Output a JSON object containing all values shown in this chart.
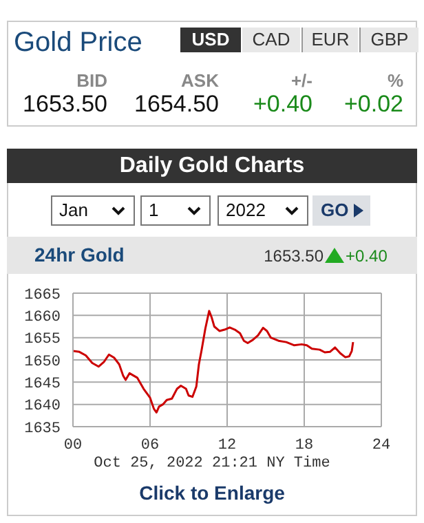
{
  "chart_data": [
    {
      "type": "other",
      "title": "Gold Price",
      "annotations": [
        "USD",
        "CAD",
        "EUR",
        "GBP",
        "BID",
        "ASK",
        "+/-",
        "%",
        "1653.50",
        "1654.50",
        "+0.40",
        "+0.02"
      ]
    },
    {
      "type": "line",
      "title": "Daily Gold Charts",
      "subtitle": "24hr Gold",
      "xlabel": "Oct 25, 2022 21:21 NY Time",
      "annotations": [
        "Jan",
        "1",
        "2022",
        "GO",
        "1653.50",
        "+0.40",
        "Click to Enlarge"
      ],
      "x": [
        0,
        0.5,
        1.0,
        1.5,
        2.0,
        2.4,
        2.8,
        3.2,
        3.6,
        3.9,
        4.1,
        4.4,
        5.0,
        5.5,
        6.0,
        6.3,
        6.5,
        6.7,
        7.0,
        7.3,
        7.7,
        8.1,
        8.4,
        8.8,
        9.0,
        9.3,
        9.6,
        9.8,
        10.0,
        10.3,
        10.6,
        10.8,
        11.0,
        11.4,
        11.8,
        12.2,
        12.6,
        13.0,
        13.3,
        13.6,
        14.0,
        14.4,
        14.8,
        15.1,
        15.4,
        16.0,
        16.6,
        17.2,
        17.8,
        18.2,
        18.6,
        19.2,
        19.6,
        20.0,
        20.4,
        20.8,
        21.2,
        21.5,
        21.7,
        21.8
      ],
      "series": [
        {
          "color": "#cc0000",
          "values": [
            1652,
            1651.8,
            1651,
            1649.3,
            1648.5,
            1649.5,
            1651.2,
            1650.5,
            1649,
            1646.5,
            1645.5,
            1647,
            1646,
            1643.5,
            1641.5,
            1639,
            1638.2,
            1639.5,
            1640,
            1641,
            1641.3,
            1643.5,
            1644.2,
            1643.5,
            1642,
            1641.7,
            1644,
            1649,
            1652,
            1657,
            1661,
            1659.5,
            1657.5,
            1656.5,
            1656.8,
            1657.3,
            1656.8,
            1656,
            1654.3,
            1653.8,
            1654.5,
            1655.5,
            1657.2,
            1656.5,
            1655,
            1654.3,
            1654,
            1653.3,
            1653.5,
            1653.3,
            1652.5,
            1652.3,
            1651.7,
            1651.8,
            1652.8,
            1651.5,
            1650.6,
            1650.8,
            1652,
            1654
          ]
        }
      ],
      "xlim": [
        0,
        24
      ],
      "xticks": [
        {
          "value": 0,
          "label": "00"
        },
        {
          "value": 6,
          "label": "06"
        },
        {
          "value": 12,
          "label": "12"
        },
        {
          "value": 18,
          "label": "18"
        },
        {
          "value": 24,
          "label": "24"
        }
      ],
      "ylim": [
        1635,
        1665
      ],
      "yticks": [
        1635,
        1640,
        1645,
        1650,
        1655,
        1660,
        1665
      ],
      "grid": true
    }
  ]
}
